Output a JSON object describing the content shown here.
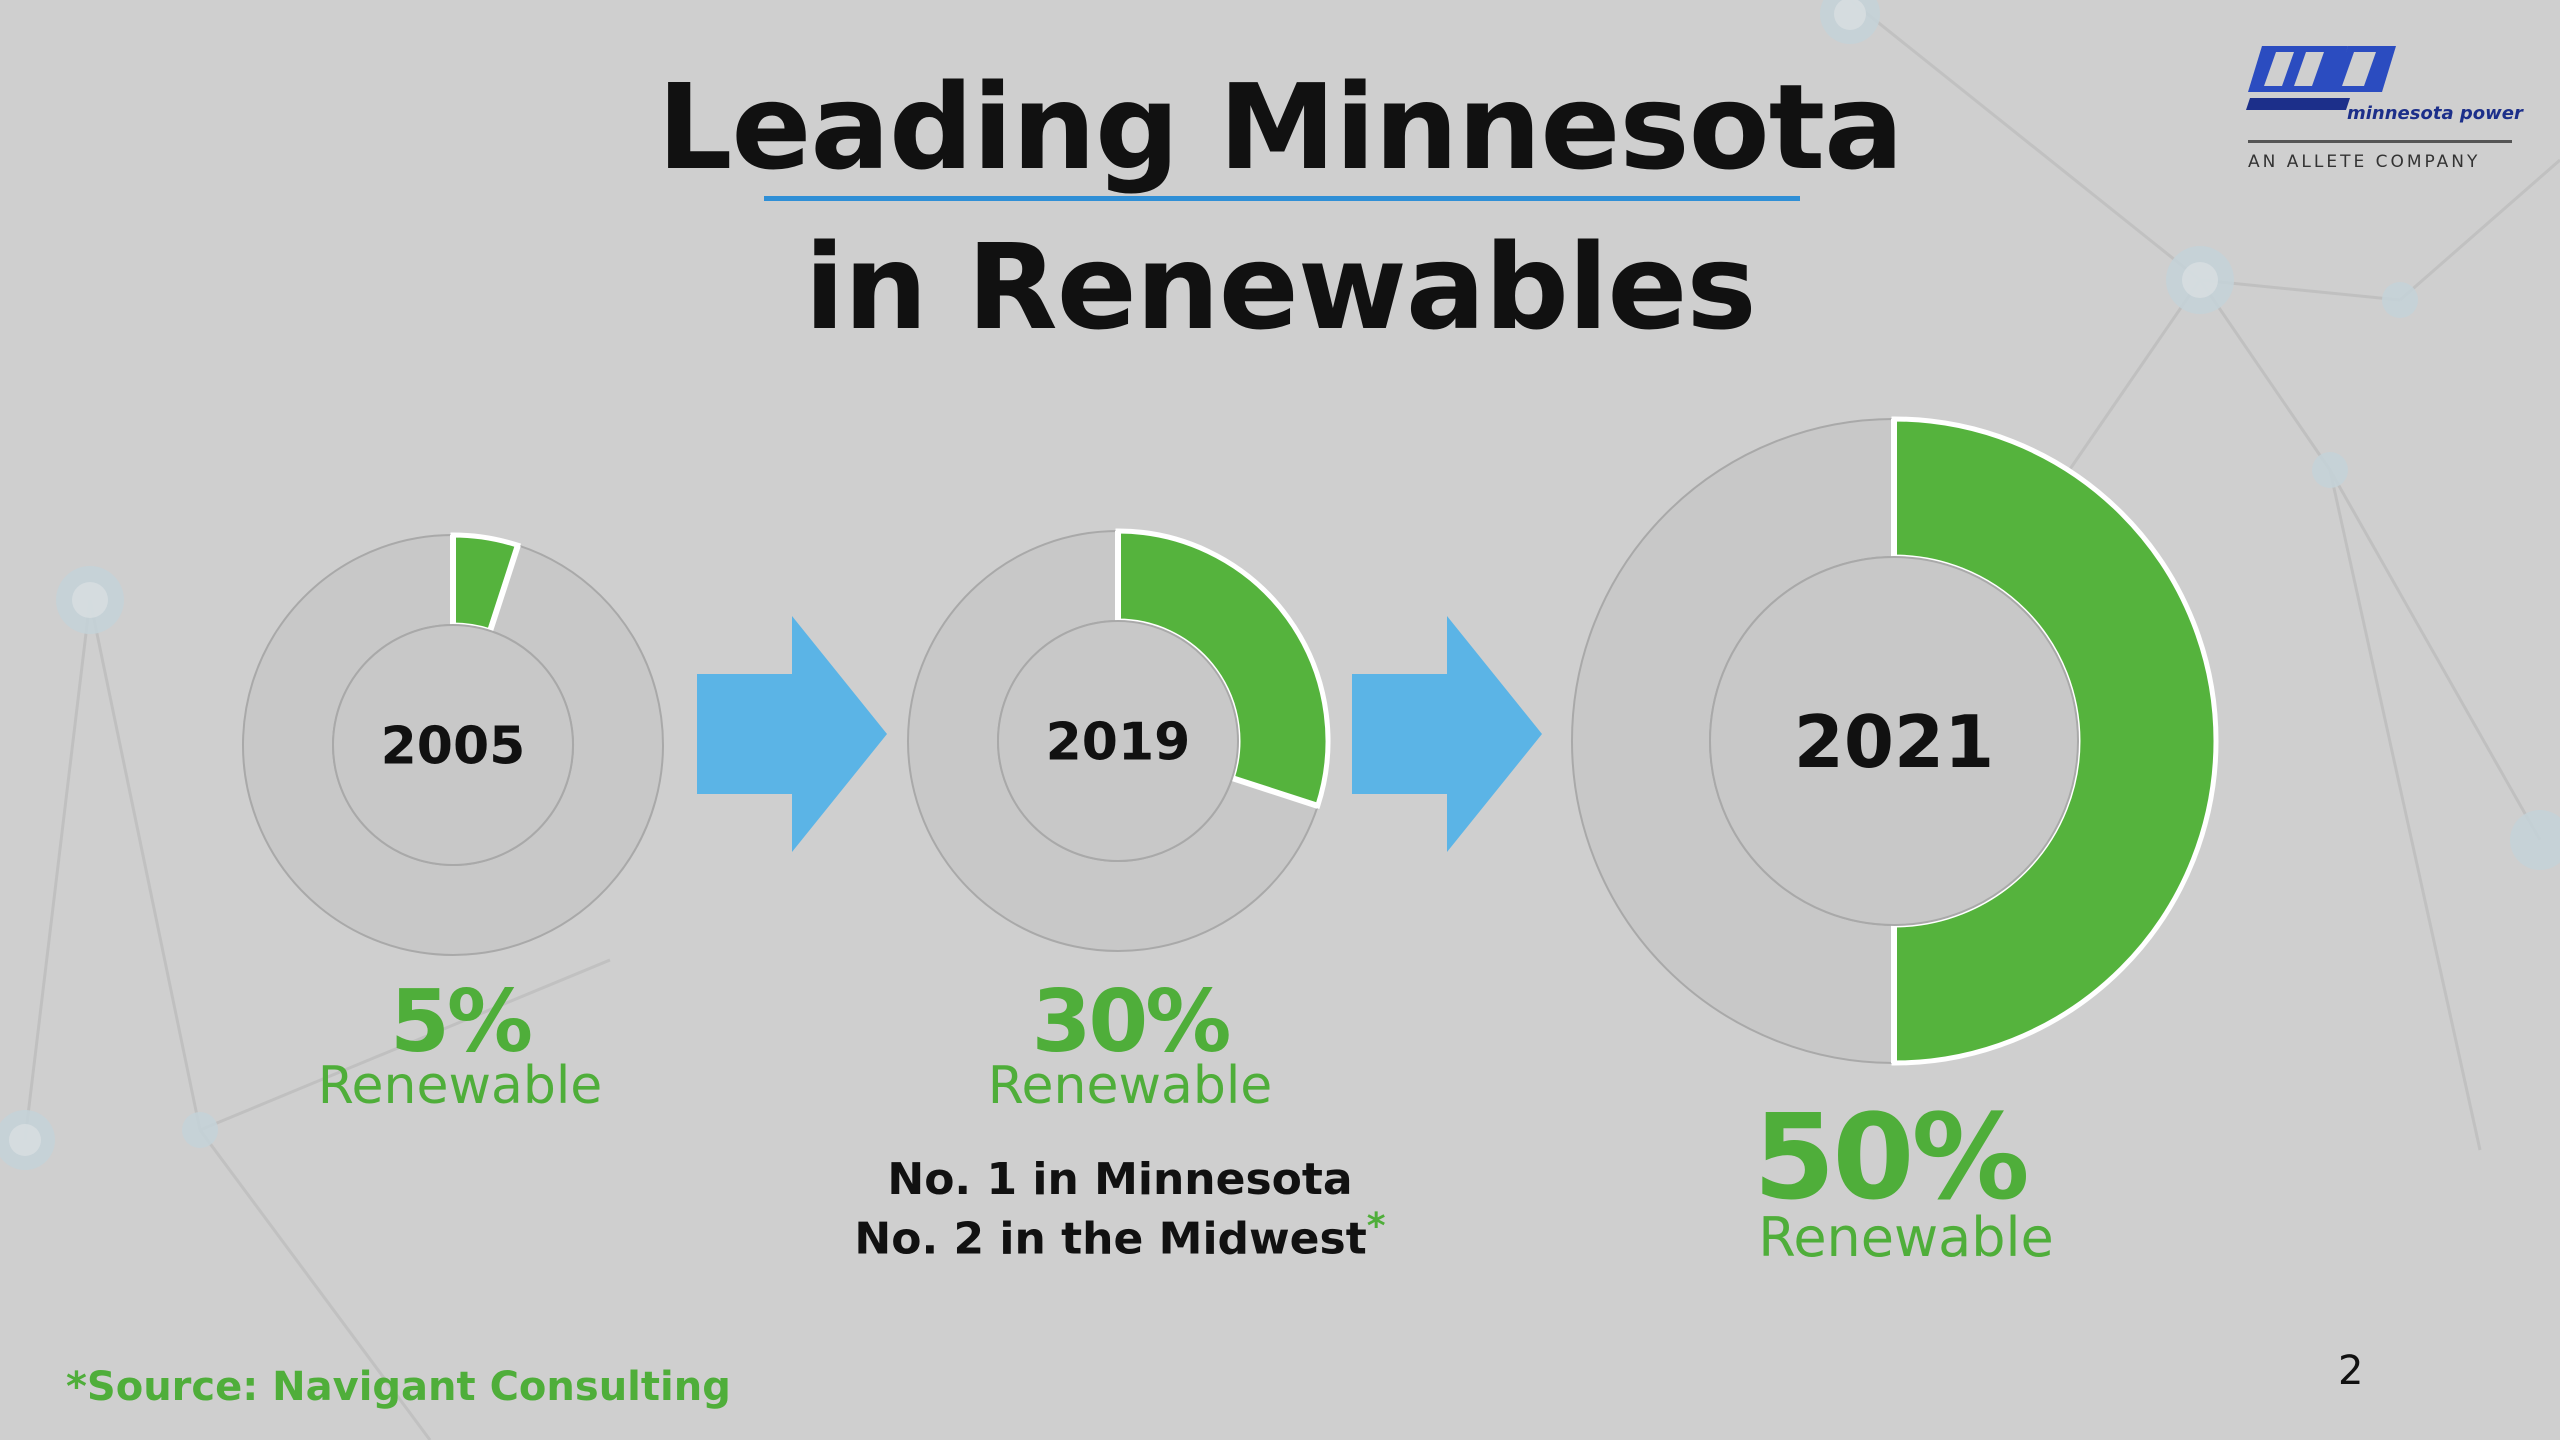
{
  "slide": {
    "title_line1": "Leading Minnesota",
    "title_line2": "in Renewables",
    "page_number": "2"
  },
  "logo": {
    "name": "minnesota power",
    "tagline": "AN ALLETE COMPANY"
  },
  "chart_data": {
    "type": "pie",
    "donuts": [
      {
        "label": "2005",
        "renewable_pct": 5,
        "pct_text": "5%",
        "caption": "Renewable"
      },
      {
        "label": "2019",
        "renewable_pct": 30,
        "pct_text": "30%",
        "caption": "Renewable"
      },
      {
        "label": "2021",
        "renewable_pct": 50,
        "pct_text": "50%",
        "caption": "Renewable"
      }
    ],
    "colors": {
      "renewable": "#55b33d",
      "other": "#c8c8c8",
      "arrow": "#5bb4e6"
    }
  },
  "rankings": {
    "line1": "No. 1 in Minnesota",
    "line2": "No. 2 in the Midwest",
    "footnote_mark": "*"
  },
  "source_note": "*Source: Navigant Consulting"
}
